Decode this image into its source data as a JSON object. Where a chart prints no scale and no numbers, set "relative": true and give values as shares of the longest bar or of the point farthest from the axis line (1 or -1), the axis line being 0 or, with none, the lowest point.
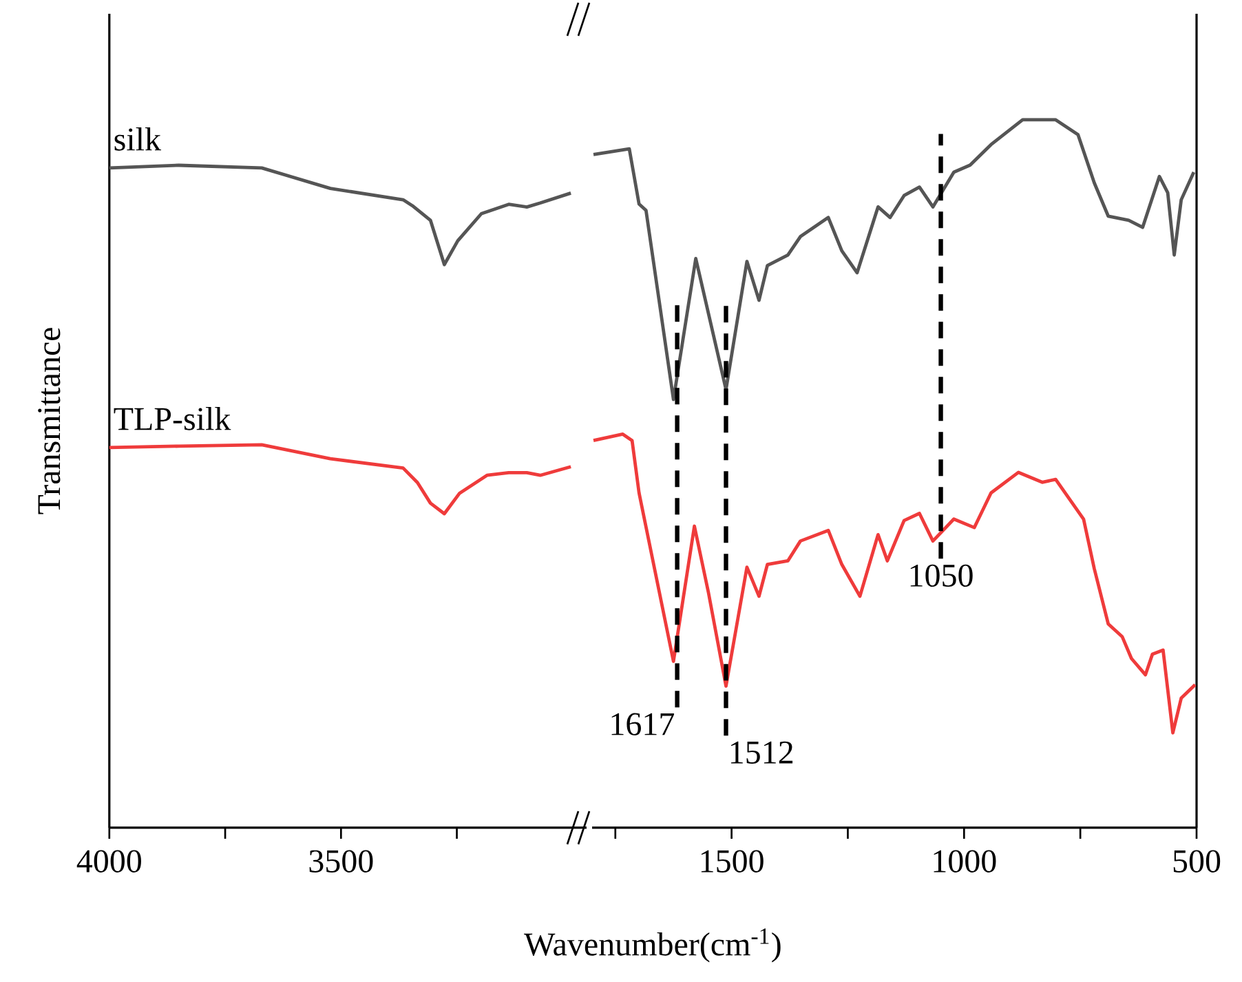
{
  "chart_data": [
    {
      "type": "line",
      "relative": true,
      "ylabel": "Transmittance",
      "xlim": [
        4000,
        2970
      ],
      "xticks": [
        4000,
        3500,
        {
          "value": 3750,
          "label": null
        },
        {
          "value": 3250,
          "label": null
        }
      ],
      "tick_labels": "x",
      "grid": false,
      "series": [
        {
          "name": "silk",
          "color": "#555555",
          "x": [
            4000,
            3850,
            3671,
            3523,
            3366,
            3346,
            3307,
            3277,
            3248,
            3197,
            3138,
            3099,
            3070,
            3004
          ],
          "values": [
            0.996,
            1.0,
            0.996,
            0.965,
            0.948,
            0.939,
            0.917,
            0.85,
            0.886,
            0.927,
            0.941,
            0.937,
            0.943,
            0.958
          ]
        },
        {
          "name": "TLP-silk",
          "color": "#ef3b3b",
          "x": [
            4000,
            3850,
            3671,
            3523,
            3366,
            3335,
            3307,
            3277,
            3244,
            3185,
            3138,
            3099,
            3070,
            3004
          ],
          "values": [
            0.574,
            0.576,
            0.578,
            0.557,
            0.543,
            0.521,
            0.49,
            0.474,
            0.505,
            0.532,
            0.536,
            0.536,
            0.532,
            0.545
          ]
        }
      ]
    },
    {
      "type": "line",
      "relative": true,
      "xlabel": "Wavenumber(cm$^{-1}$)",
      "xlim": [
        1800,
        500
      ],
      "xticks": [
        1500,
        1000,
        500,
        {
          "value": 1750,
          "label": null
        },
        {
          "value": 1250,
          "label": null
        },
        {
          "value": 750,
          "label": null
        }
      ],
      "tick_labels": "x",
      "grid": false,
      "ref_lines": [
        {
          "axis": "x",
          "value": 1617,
          "label": "1617",
          "line_style": "dashed",
          "color": "#000000"
        },
        {
          "axis": "x",
          "value": 1512,
          "label": "1512",
          "line_style": "dashed",
          "color": "#000000"
        },
        {
          "axis": "x",
          "value": 1050,
          "label": "1050",
          "line_style": "dashed",
          "color": "#000000"
        }
      ],
      "series": [
        {
          "color": "#555555",
          "x": [
            1797,
            1720,
            1699,
            1684,
            1625,
            1577,
            1512,
            1467,
            1441,
            1423,
            1379,
            1352,
            1292,
            1263,
            1230,
            1185,
            1159,
            1129,
            1096,
            1067,
            1022,
            987,
            942,
            874,
            803,
            755,
            720,
            690,
            646,
            616,
            580,
            562,
            548,
            533,
            506
          ],
          "values": [
            0.951,
            0.959,
            0.881,
            0.872,
            0.605,
            0.804,
            0.619,
            0.8,
            0.745,
            0.794,
            0.809,
            0.835,
            0.862,
            0.815,
            0.784,
            0.877,
            0.862,
            0.893,
            0.905,
            0.877,
            0.926,
            0.936,
            0.965,
            1.0,
            1.0,
            0.979,
            0.911,
            0.864,
            0.858,
            0.848,
            0.92,
            0.897,
            0.809,
            0.887,
            0.926
          ]
        },
        {
          "color": "#ef3b3b",
          "x": [
            1797,
            1734,
            1714,
            1699,
            1625,
            1580,
            1550,
            1512,
            1467,
            1441,
            1423,
            1379,
            1352,
            1292,
            1263,
            1224,
            1185,
            1165,
            1129,
            1096,
            1067,
            1022,
            978,
            942,
            883,
            832,
            803,
            743,
            720,
            690,
            660,
            640,
            610,
            595,
            572,
            551,
            533,
            503
          ],
          "values": [
            0.547,
            0.556,
            0.547,
            0.473,
            0.235,
            0.426,
            0.333,
            0.2,
            0.368,
            0.327,
            0.372,
            0.377,
            0.405,
            0.42,
            0.372,
            0.327,
            0.414,
            0.377,
            0.434,
            0.444,
            0.405,
            0.436,
            0.424,
            0.473,
            0.502,
            0.488,
            0.492,
            0.436,
            0.366,
            0.288,
            0.27,
            0.239,
            0.216,
            0.245,
            0.251,
            0.134,
            0.183,
            0.202
          ]
        }
      ]
    }
  ]
}
